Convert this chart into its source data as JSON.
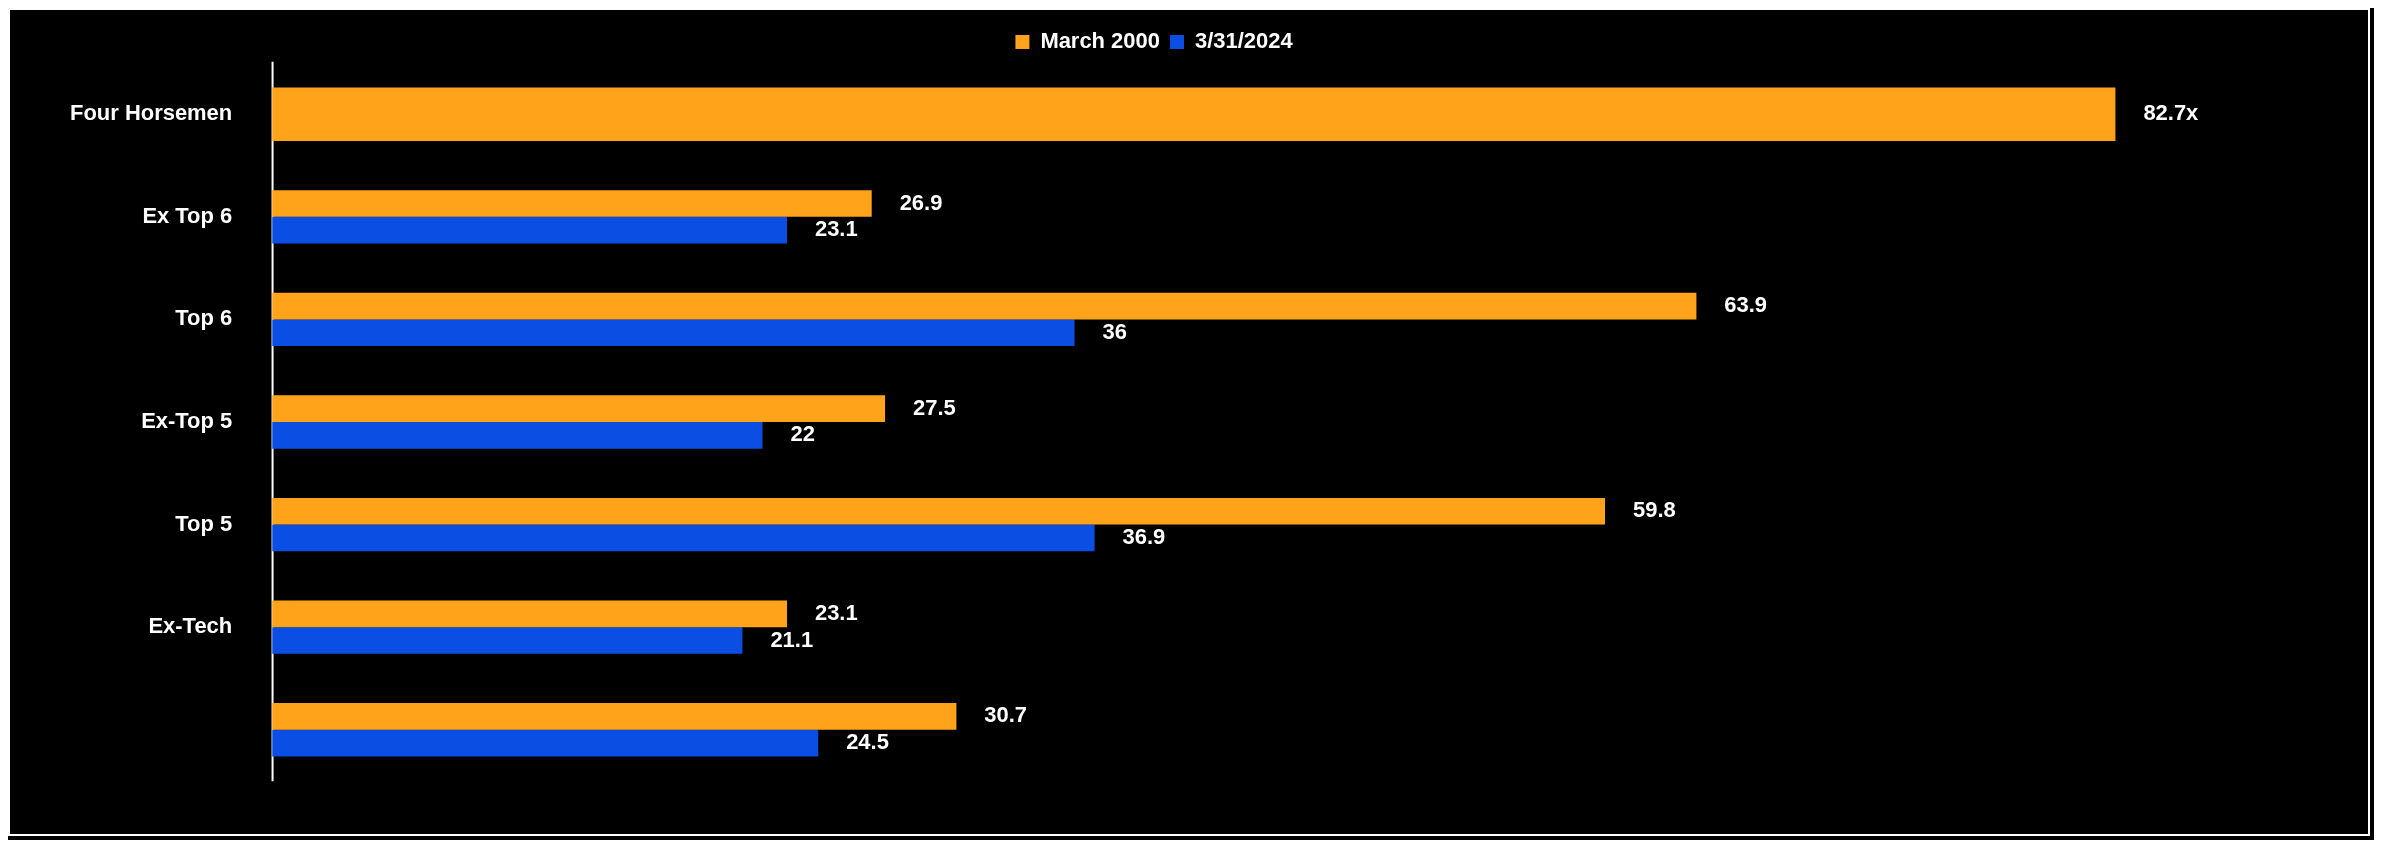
{
  "chart_data": {
    "type": "bar",
    "orientation": "horizontal",
    "categories": [
      "Four Horsemen",
      "Ex Top 6",
      "Top 6",
      "Ex-Top 5",
      "Top 5",
      "Ex-Tech",
      null
    ],
    "series": [
      {
        "name": "March 2000",
        "color": "#ffa31a",
        "values": [
          82.7,
          26.9,
          63.9,
          27.5,
          59.8,
          23.1,
          30.7
        ],
        "value_labels": [
          "82.7x",
          "26.9",
          "63.9",
          "27.5",
          "59.8",
          "23.1",
          "30.7"
        ]
      },
      {
        "name": "3/31/2024",
        "color": "#0a4ee4",
        "values": [
          null,
          23.1,
          36,
          22,
          36.9,
          21.1,
          24.5
        ],
        "value_labels": [
          null,
          "23.1",
          "36",
          "22",
          "36.9",
          "21.1",
          "24.5"
        ]
      }
    ],
    "legend": "top",
    "tick_labels": "y"
  }
}
